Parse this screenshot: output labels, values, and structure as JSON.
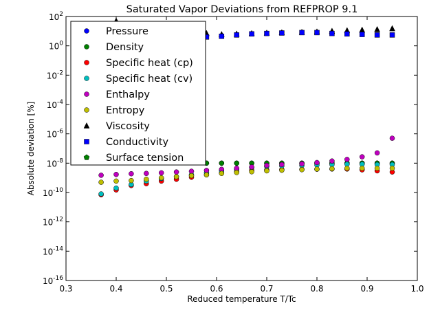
{
  "chart_data": {
    "type": "scatter",
    "title": "Saturated Vapor Deviations from REFPROP 9.1",
    "xlabel": "Reduced temperature T/Tc",
    "ylabel": "Absolute deviation [%]",
    "xlim": [
      0.3,
      1.0
    ],
    "ylim_log10": [
      -16,
      2
    ],
    "yscale": "log",
    "grid": false,
    "legend_position": "upper-left",
    "x_ticks": [
      {
        "value": 0.3,
        "label": "0.3"
      },
      {
        "value": 0.4,
        "label": "0.4"
      },
      {
        "value": 0.5,
        "label": "0.5"
      },
      {
        "value": 0.6,
        "label": "0.6"
      },
      {
        "value": 0.7,
        "label": "0.7"
      },
      {
        "value": 0.8,
        "label": "0.8"
      },
      {
        "value": 0.9,
        "label": "0.9"
      },
      {
        "value": 1.0,
        "label": "1.0"
      }
    ],
    "y_ticks": [
      {
        "value": 2,
        "base": "10",
        "exp": "2"
      },
      {
        "value": 0,
        "base": "10",
        "exp": "0"
      },
      {
        "value": -2,
        "base": "10",
        "exp": "-2"
      },
      {
        "value": -4,
        "base": "10",
        "exp": "-4"
      },
      {
        "value": -6,
        "base": "10",
        "exp": "-6"
      },
      {
        "value": -8,
        "base": "10",
        "exp": "-8"
      },
      {
        "value": -10,
        "base": "10",
        "exp": "-10"
      },
      {
        "value": -12,
        "base": "10",
        "exp": "-12"
      },
      {
        "value": -14,
        "base": "10",
        "exp": "-14"
      },
      {
        "value": -16,
        "base": "10",
        "exp": "-16"
      }
    ],
    "x": [
      0.37,
      0.4,
      0.43,
      0.46,
      0.49,
      0.52,
      0.55,
      0.58,
      0.61,
      0.64,
      0.67,
      0.7,
      0.73,
      0.77,
      0.8,
      0.83,
      0.86,
      0.89,
      0.92,
      0.95
    ],
    "series": [
      {
        "name": "Pressure",
        "marker": "circle",
        "color": "#0000ff",
        "values": [
          null,
          null,
          null,
          null,
          null,
          null,
          null,
          1e-08,
          1e-08,
          1e-08,
          1e-08,
          1e-08,
          1e-08,
          1e-08,
          1e-08,
          1e-08,
          1e-08,
          1e-08,
          1e-08,
          1e-08
        ]
      },
      {
        "name": "Density",
        "marker": "circle",
        "color": "#008000",
        "values": [
          null,
          null,
          null,
          null,
          null,
          null,
          null,
          1e-08,
          1e-08,
          1e-08,
          1e-08,
          1e-08,
          1e-08,
          1e-08,
          1e-08,
          1e-08,
          1e-08,
          1e-08,
          1e-08,
          1e-08
        ]
      },
      {
        "name": "Specific heat (cp)",
        "marker": "circle",
        "color": "#ff0000",
        "values": [
          7e-11,
          1.5e-10,
          3e-10,
          4e-10,
          6e-10,
          8e-10,
          1.1e-09,
          1.6e-09,
          2.2e-09,
          2.7e-09,
          3.2e-09,
          3.5e-09,
          3.7e-09,
          3.8e-09,
          3.9e-09,
          4e-09,
          4e-09,
          3.5e-09,
          3e-09,
          2.5e-09
        ]
      },
      {
        "name": "Specific heat (cv)",
        "marker": "circle",
        "color": "#00bfbf",
        "values": [
          8e-11,
          2e-10,
          3.5e-10,
          6e-10,
          9e-10,
          1.2e-09,
          1.6e-09,
          2.2e-09,
          3e-09,
          4e-09,
          5e-09,
          6e-09,
          6.5e-09,
          7e-09,
          7.5e-09,
          8e-09,
          8.5e-09,
          8.5e-09,
          8e-09,
          8e-09
        ]
      },
      {
        "name": "Enthalpy",
        "marker": "circle",
        "color": "#bf00bf",
        "values": [
          1.5e-09,
          1.7e-09,
          1.9e-09,
          2e-09,
          2.2e-09,
          2.5e-09,
          2.8e-09,
          3.2e-09,
          3.8e-09,
          4.5e-09,
          5.5e-09,
          7e-09,
          8e-09,
          9e-09,
          1.1e-08,
          1.4e-08,
          1.8e-08,
          2.7e-08,
          5e-08,
          5e-07
        ]
      },
      {
        "name": "Entropy",
        "marker": "circle",
        "color": "#bfbf00",
        "values": [
          5e-10,
          6e-10,
          6.5e-10,
          8e-10,
          1e-09,
          1.2e-09,
          1.4e-09,
          1.6e-09,
          2e-09,
          2.3e-09,
          2.6e-09,
          3e-09,
          3.3e-09,
          3.6e-09,
          3.9e-09,
          4.2e-09,
          4.5e-09,
          4.5e-09,
          4.5e-09,
          4.5e-09
        ]
      },
      {
        "name": "Viscosity",
        "marker": "triangle",
        "color": "#000000",
        "values": [
          null,
          50,
          null,
          null,
          null,
          null,
          null,
          7,
          6,
          6.5,
          7,
          7.5,
          8,
          8.5,
          9,
          10,
          11,
          12,
          13,
          15
        ]
      },
      {
        "name": "Conductivity",
        "marker": "square",
        "color": "#0000ff",
        "values": [
          null,
          null,
          null,
          null,
          null,
          null,
          null,
          4,
          4.5,
          5.5,
          6.5,
          7,
          7.5,
          8,
          8,
          7,
          6.5,
          6,
          5.5,
          5.5
        ]
      },
      {
        "name": "Surface tension",
        "marker": "pentagon",
        "color": "#008000",
        "values": [
          null,
          null,
          null,
          null,
          null,
          null,
          null,
          null,
          null,
          null,
          null,
          null,
          null,
          null,
          null,
          null,
          null,
          null,
          null,
          null
        ]
      }
    ]
  }
}
